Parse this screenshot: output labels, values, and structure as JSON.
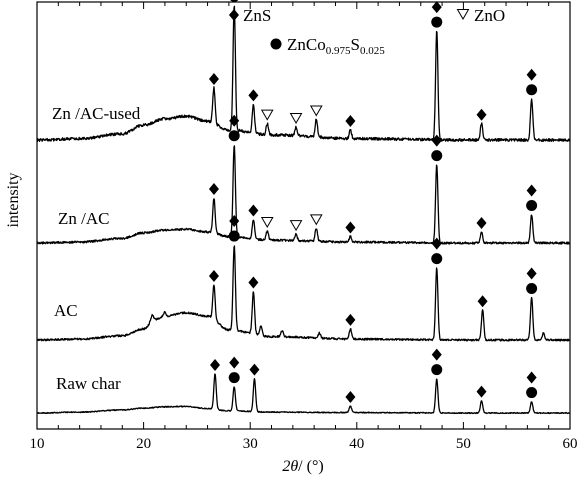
{
  "chart_data": {
    "type": "line",
    "xlabel": "2θ/ (°)",
    "ylabel": "intensity",
    "xlim": [
      10,
      60
    ],
    "x_ticks": [
      10,
      20,
      30,
      40,
      50,
      60
    ],
    "legend": {
      "placement": "top-center",
      "entries": [
        {
          "marker": "diamond",
          "label": "ZnS"
        },
        {
          "marker": "triangle-down",
          "label": "ZnO"
        },
        {
          "marker": "circle",
          "label": "ZnCo0.975S0.025"
        }
      ]
    },
    "series": [
      {
        "name": "Zn /AC-used",
        "baseline_x": [
          10,
          14,
          18,
          20,
          22,
          24,
          26,
          28,
          32,
          40,
          50,
          60
        ],
        "baseline_y": [
          0.0,
          0.01,
          0.05,
          0.12,
          0.17,
          0.19,
          0.15,
          0.08,
          0.04,
          0.01,
          0.0,
          0.0
        ],
        "peaks": [
          {
            "x": 26.6,
            "h": 0.28,
            "marks": [
              "diamond"
            ]
          },
          {
            "x": 28.5,
            "h": 1.0,
            "marks": [
              "diamond",
              "circle"
            ]
          },
          {
            "x": 30.3,
            "h": 0.23,
            "marks": [
              "diamond"
            ]
          },
          {
            "x": 31.6,
            "h": 0.09,
            "marks": [
              "triangle-down"
            ]
          },
          {
            "x": 34.3,
            "h": 0.07,
            "marks": [
              "triangle-down"
            ]
          },
          {
            "x": 36.2,
            "h": 0.14,
            "marks": [
              "triangle-down"
            ]
          },
          {
            "x": 39.4,
            "h": 0.07,
            "marks": [
              "diamond"
            ]
          },
          {
            "x": 47.5,
            "h": 0.87,
            "marks": [
              "diamond",
              "circle"
            ]
          },
          {
            "x": 51.7,
            "h": 0.13,
            "marks": [
              "diamond"
            ]
          },
          {
            "x": 56.4,
            "h": 0.33,
            "marks": [
              "diamond",
              "circle"
            ]
          }
        ]
      },
      {
        "name": "Zn /AC",
        "baseline_x": [
          10,
          14,
          18,
          20,
          22,
          24,
          26,
          28,
          32,
          40,
          50,
          60
        ],
        "baseline_y": [
          0.0,
          0.01,
          0.05,
          0.11,
          0.14,
          0.15,
          0.12,
          0.07,
          0.03,
          0.01,
          0.0,
          0.0
        ],
        "peaks": [
          {
            "x": 26.6,
            "h": 0.38,
            "marks": [
              "diamond"
            ]
          },
          {
            "x": 28.5,
            "h": 1.0,
            "marks": [
              "diamond",
              "circle"
            ]
          },
          {
            "x": 30.3,
            "h": 0.21,
            "marks": [
              "diamond"
            ]
          },
          {
            "x": 31.6,
            "h": 0.1,
            "marks": [
              "triangle-down"
            ]
          },
          {
            "x": 34.3,
            "h": 0.07,
            "marks": [
              "triangle-down"
            ]
          },
          {
            "x": 36.2,
            "h": 0.14,
            "marks": [
              "triangle-down"
            ]
          },
          {
            "x": 39.4,
            "h": 0.06,
            "marks": [
              "diamond"
            ]
          },
          {
            "x": 47.5,
            "h": 0.85,
            "marks": [
              "diamond",
              "circle"
            ]
          },
          {
            "x": 51.7,
            "h": 0.12,
            "marks": [
              "diamond"
            ]
          },
          {
            "x": 56.4,
            "h": 0.31,
            "marks": [
              "diamond",
              "circle"
            ]
          }
        ]
      },
      {
        "name": "AC",
        "baseline_x": [
          10,
          14,
          18,
          20,
          21,
          22,
          24,
          26,
          28,
          32,
          40,
          50,
          60
        ],
        "baseline_y": [
          0.0,
          0.01,
          0.05,
          0.13,
          0.24,
          0.28,
          0.32,
          0.28,
          0.12,
          0.04,
          0.01,
          0.0,
          0.0
        ],
        "peaks": [
          {
            "x": 20.8,
            "h": 0.06,
            "marks": []
          },
          {
            "x": 22.0,
            "h": 0.05,
            "marks": []
          },
          {
            "x": 26.6,
            "h": 0.4,
            "marks": [
              "diamond"
            ]
          },
          {
            "x": 28.5,
            "h": 1.0,
            "marks": [
              "diamond",
              "circle"
            ]
          },
          {
            "x": 30.3,
            "h": 0.5,
            "marks": [
              "diamond"
            ]
          },
          {
            "x": 31.0,
            "h": 0.12,
            "marks": []
          },
          {
            "x": 33.0,
            "h": 0.07,
            "marks": []
          },
          {
            "x": 36.5,
            "h": 0.06,
            "marks": []
          },
          {
            "x": 39.4,
            "h": 0.12,
            "marks": [
              "diamond"
            ]
          },
          {
            "x": 47.5,
            "h": 0.85,
            "marks": [
              "diamond",
              "circle"
            ]
          },
          {
            "x": 51.8,
            "h": 0.35,
            "marks": [
              "diamond"
            ]
          },
          {
            "x": 56.4,
            "h": 0.5,
            "marks": [
              "diamond",
              "circle"
            ]
          },
          {
            "x": 57.5,
            "h": 0.08,
            "marks": []
          }
        ]
      },
      {
        "name": "Raw char",
        "baseline_x": [
          10,
          14,
          18,
          20,
          22,
          24,
          26,
          28,
          32,
          40,
          50,
          60
        ],
        "baseline_y": [
          0.0,
          0.02,
          0.07,
          0.11,
          0.14,
          0.15,
          0.1,
          0.05,
          0.02,
          0.01,
          0.0,
          0.0
        ],
        "peaks": [
          {
            "x": 26.7,
            "h": 0.8,
            "marks": [
              "diamond"
            ]
          },
          {
            "x": 28.5,
            "h": 0.55,
            "marks": [
              "diamond",
              "circle"
            ]
          },
          {
            "x": 30.4,
            "h": 0.75,
            "marks": [
              "diamond"
            ]
          },
          {
            "x": 39.4,
            "h": 0.15,
            "marks": [
              "diamond"
            ]
          },
          {
            "x": 47.5,
            "h": 0.78,
            "marks": [
              "diamond",
              "circle"
            ]
          },
          {
            "x": 51.7,
            "h": 0.28,
            "marks": [
              "diamond"
            ]
          },
          {
            "x": 56.4,
            "h": 0.26,
            "marks": [
              "diamond",
              "circle"
            ]
          }
        ]
      }
    ]
  }
}
